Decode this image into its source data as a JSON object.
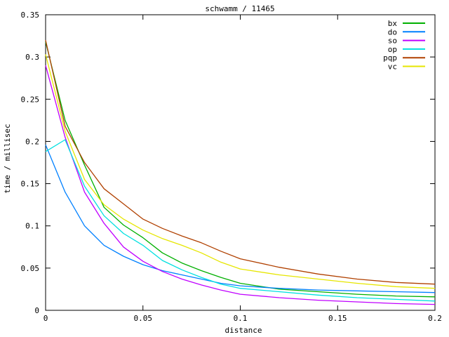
{
  "colors": {
    "background": "#ffffff",
    "axis": "#000000",
    "text": "#000000"
  },
  "chart_data": {
    "type": "line",
    "title": "schwamm / 11465",
    "xlabel": "distance",
    "ylabel": "time / millisec",
    "xlim": [
      0,
      0.2
    ],
    "ylim": [
      0,
      0.35
    ],
    "grid": false,
    "legend_position": "top-right-inside",
    "xticks": [
      0,
      0.05,
      0.1,
      0.15,
      0.2
    ],
    "xtick_labels": [
      "0",
      "0.05",
      "0.1",
      "0.15",
      "0.2"
    ],
    "yticks": [
      0,
      0.05,
      0.1,
      0.15,
      0.2,
      0.25,
      0.3,
      0.35
    ],
    "ytick_labels": [
      "0",
      "0.05",
      "0.1",
      "0.15",
      "0.2",
      "0.25",
      "0.3",
      "0.35"
    ],
    "x": [
      0,
      0.01,
      0.02,
      0.03,
      0.04,
      0.05,
      0.06,
      0.07,
      0.08,
      0.09,
      0.1,
      0.12,
      0.14,
      0.16,
      0.18,
      0.2
    ],
    "series": [
      {
        "name": "bx",
        "color": "#00b000",
        "values": [
          0.318,
          0.225,
          0.172,
          0.122,
          0.101,
          0.086,
          0.068,
          0.056,
          0.047,
          0.039,
          0.032,
          0.025,
          0.022,
          0.019,
          0.017,
          0.016
        ]
      },
      {
        "name": "do",
        "color": "#0080ff",
        "values": [
          0.196,
          0.14,
          0.1,
          0.077,
          0.064,
          0.054,
          0.047,
          0.042,
          0.037,
          0.032,
          0.029,
          0.026,
          0.024,
          0.023,
          0.022,
          0.021
        ]
      },
      {
        "name": "so",
        "color": "#c000ff",
        "values": [
          0.29,
          0.205,
          0.14,
          0.103,
          0.075,
          0.058,
          0.046,
          0.037,
          0.03,
          0.024,
          0.019,
          0.015,
          0.012,
          0.01,
          0.008,
          0.007
        ]
      },
      {
        "name": "op",
        "color": "#00e0e0",
        "values": [
          0.188,
          0.202,
          0.147,
          0.112,
          0.091,
          0.077,
          0.059,
          0.048,
          0.039,
          0.031,
          0.026,
          0.022,
          0.018,
          0.015,
          0.013,
          0.011
        ]
      },
      {
        "name": "pqp",
        "color": "#b04000",
        "values": [
          0.32,
          0.218,
          0.175,
          0.144,
          0.126,
          0.108,
          0.097,
          0.088,
          0.08,
          0.07,
          0.061,
          0.051,
          0.043,
          0.037,
          0.033,
          0.031
        ]
      },
      {
        "name": "vc",
        "color": "#e6e600",
        "values": [
          0.303,
          0.212,
          0.155,
          0.125,
          0.108,
          0.095,
          0.085,
          0.077,
          0.068,
          0.057,
          0.049,
          0.042,
          0.037,
          0.032,
          0.028,
          0.026
        ]
      }
    ]
  }
}
